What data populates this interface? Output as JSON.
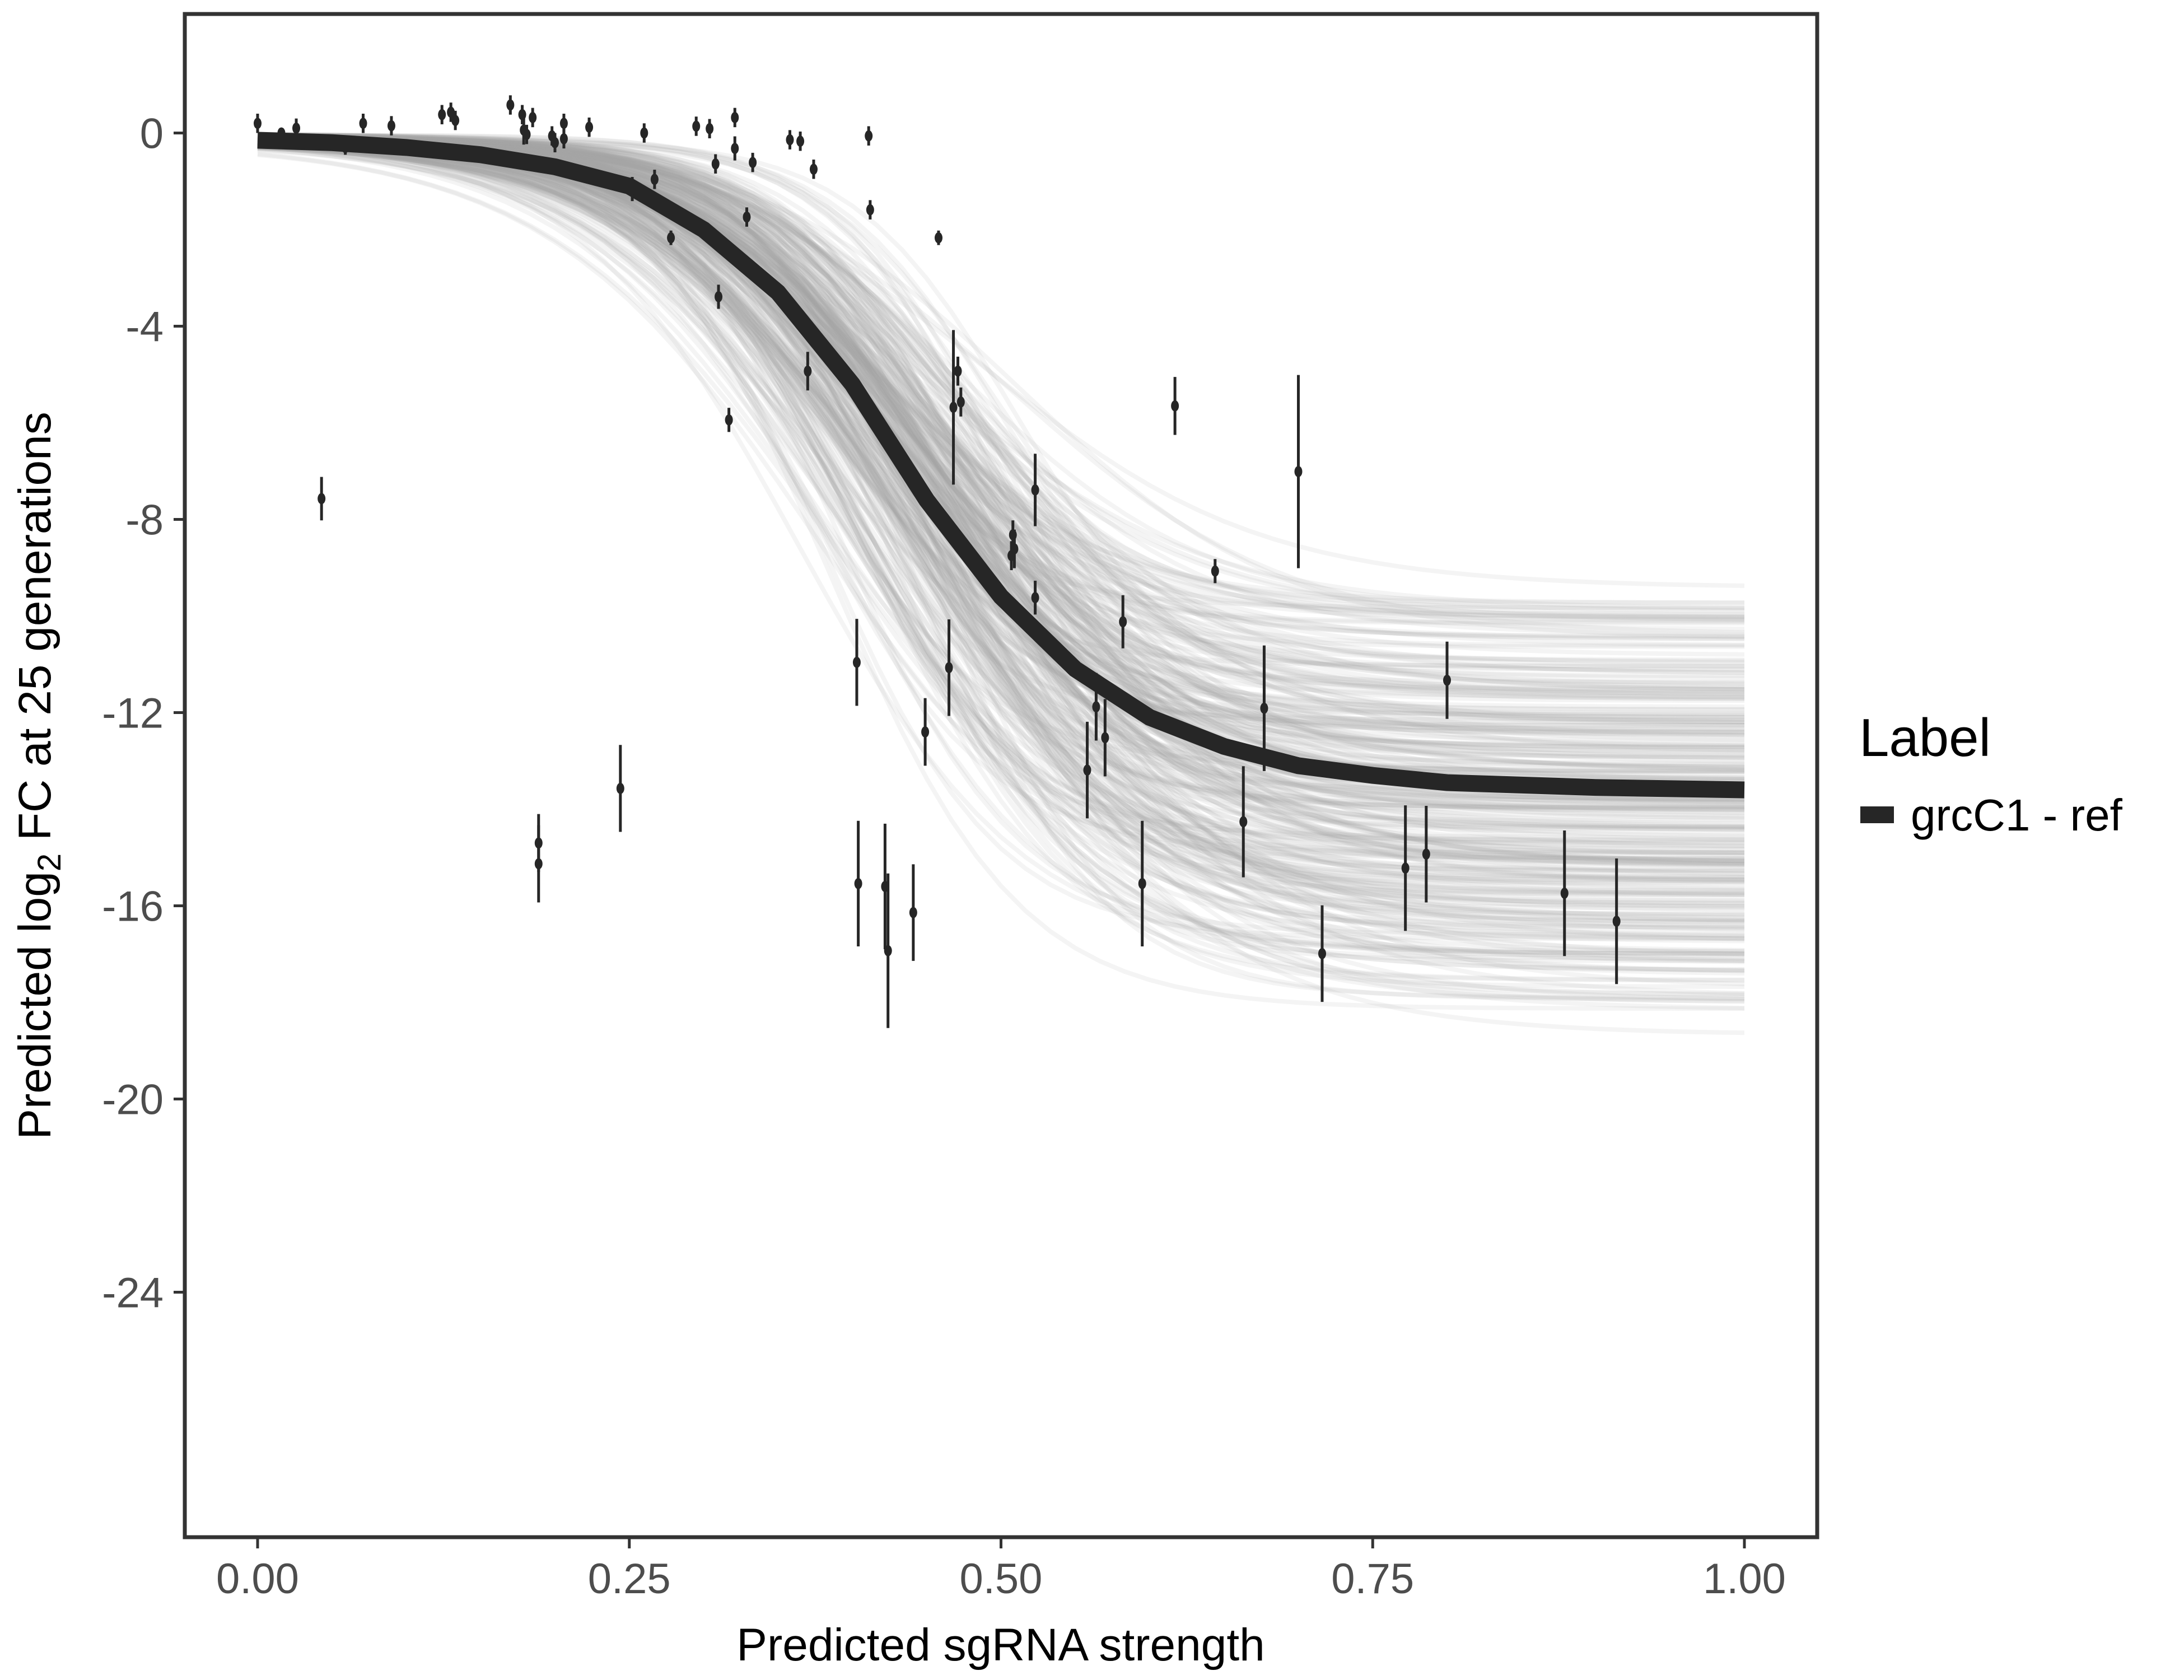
{
  "chart_data": {
    "type": "scatter",
    "title": "",
    "xlabel": "Predicted sgRNA strength",
    "ylabel_prefix": "Predicted  log",
    "ylabel_sub": "2",
    "ylabel_suffix": " FC at 25 generations",
    "xlim": [
      -0.05,
      1.05
    ],
    "ylim": [
      -29.1,
      2.46
    ],
    "xticks": [
      0,
      0.25,
      0.5,
      0.75,
      1.0
    ],
    "xtick_labels": [
      "0.00",
      "0.25",
      "0.50",
      "0.75",
      "1.00"
    ],
    "yticks": [
      0,
      -4,
      -8,
      -12,
      -16,
      -20,
      -24
    ],
    "ytick_labels": [
      "0",
      "-4",
      "-8",
      "-12",
      "-16",
      "-20",
      "-24"
    ],
    "grid": false,
    "legend": {
      "title": "Label",
      "placement": "right",
      "entries": [
        {
          "label": "grcC1 - ref",
          "color": "#262626"
        }
      ]
    },
    "colors": {
      "fit": "#262626",
      "draws": "#a6a6a6",
      "points": "#262626",
      "frame": "#333333"
    },
    "fit_curve": {
      "name": "grcC1 - ref",
      "x": [
        0,
        0.05,
        0.1,
        0.15,
        0.2,
        0.25,
        0.3,
        0.35,
        0.4,
        0.45,
        0.5,
        0.55,
        0.6,
        0.65,
        0.7,
        0.75,
        0.8,
        0.9,
        1.0
      ],
      "y": [
        -0.15,
        -0.2,
        -0.3,
        -0.45,
        -0.7,
        -1.1,
        -2.0,
        -3.3,
        -5.2,
        -7.6,
        -9.6,
        -11.1,
        -12.1,
        -12.7,
        -13.1,
        -13.3,
        -13.45,
        -13.55,
        -13.6
      ]
    },
    "posterior_band": {
      "x": [
        0,
        0.25,
        0.4,
        0.5,
        0.75,
        1.0
      ],
      "upper": [
        0,
        0,
        -1.5,
        -6.8,
        -9.2,
        -9.3
      ],
      "lower": [
        -1.4,
        -3.5,
        -8,
        -12.5,
        -18,
        -19.2
      ]
    },
    "points": [
      {
        "x": 0.0,
        "y": 0.2,
        "err": 0.2
      },
      {
        "x": 0.016,
        "y": 0.0,
        "err": 0.1
      },
      {
        "x": 0.026,
        "y": 0.1,
        "err": 0.2
      },
      {
        "x": 0.043,
        "y": -7.57,
        "err": 0.45
      },
      {
        "x": 0.059,
        "y": -0.3,
        "err": 0.15
      },
      {
        "x": 0.071,
        "y": 0.2,
        "err": 0.2
      },
      {
        "x": 0.09,
        "y": 0.15,
        "err": 0.2
      },
      {
        "x": 0.124,
        "y": 0.38,
        "err": 0.2
      },
      {
        "x": 0.13,
        "y": 0.43,
        "err": 0.2
      },
      {
        "x": 0.133,
        "y": 0.26,
        "err": 0.2
      },
      {
        "x": 0.17,
        "y": 0.58,
        "err": 0.2
      },
      {
        "x": 0.178,
        "y": 0.38,
        "err": 0.2
      },
      {
        "x": 0.179,
        "y": 0.06,
        "err": 0.3
      },
      {
        "x": 0.181,
        "y": -0.03,
        "err": 0.2
      },
      {
        "x": 0.185,
        "y": 0.32,
        "err": 0.2
      },
      {
        "x": 0.198,
        "y": -0.06,
        "err": 0.2
      },
      {
        "x": 0.2,
        "y": -0.2,
        "err": 0.2
      },
      {
        "x": 0.206,
        "y": -0.12,
        "err": 0.2
      },
      {
        "x": 0.206,
        "y": 0.2,
        "err": 0.2
      },
      {
        "x": 0.223,
        "y": 0.12,
        "err": 0.2
      },
      {
        "x": 0.189,
        "y": -14.7,
        "err": 0.6
      },
      {
        "x": 0.189,
        "y": -15.13,
        "err": 0.8
      },
      {
        "x": 0.244,
        "y": -13.57,
        "err": 0.9
      },
      {
        "x": 0.252,
        "y": -1.16,
        "err": 0.25
      },
      {
        "x": 0.26,
        "y": 0.0,
        "err": 0.2
      },
      {
        "x": 0.267,
        "y": -0.96,
        "err": 0.2
      },
      {
        "x": 0.278,
        "y": -2.17,
        "err": 0.15
      },
      {
        "x": 0.295,
        "y": 0.14,
        "err": 0.2
      },
      {
        "x": 0.304,
        "y": 0.09,
        "err": 0.2
      },
      {
        "x": 0.308,
        "y": -0.64,
        "err": 0.2
      },
      {
        "x": 0.31,
        "y": -3.39,
        "err": 0.25
      },
      {
        "x": 0.317,
        "y": -5.94,
        "err": 0.25
      },
      {
        "x": 0.321,
        "y": 0.32,
        "err": 0.2
      },
      {
        "x": 0.321,
        "y": -0.32,
        "err": 0.25
      },
      {
        "x": 0.329,
        "y": -1.74,
        "err": 0.2
      },
      {
        "x": 0.333,
        "y": -0.61,
        "err": 0.2
      },
      {
        "x": 0.358,
        "y": -0.14,
        "err": 0.2
      },
      {
        "x": 0.365,
        "y": -0.17,
        "err": 0.2
      },
      {
        "x": 0.374,
        "y": -0.75,
        "err": 0.2
      },
      {
        "x": 0.37,
        "y": -4.93,
        "err": 0.4
      },
      {
        "x": 0.403,
        "y": -10.96,
        "err": 0.9
      },
      {
        "x": 0.404,
        "y": -15.54,
        "err": 1.3
      },
      {
        "x": 0.411,
        "y": -0.06,
        "err": 0.2
      },
      {
        "x": 0.412,
        "y": -1.59,
        "err": 0.2
      },
      {
        "x": 0.422,
        "y": -15.6,
        "err": 1.3
      },
      {
        "x": 0.424,
        "y": -16.93,
        "err": 1.6
      },
      {
        "x": 0.441,
        "y": -16.14,
        "err": 1.0
      },
      {
        "x": 0.449,
        "y": -12.4,
        "err": 0.7
      },
      {
        "x": 0.458,
        "y": -2.17,
        "err": 0.15
      },
      {
        "x": 0.465,
        "y": -11.07,
        "err": 1.0
      },
      {
        "x": 0.468,
        "y": -5.68,
        "err": 1.6
      },
      {
        "x": 0.471,
        "y": -4.93,
        "err": 0.3
      },
      {
        "x": 0.473,
        "y": -5.57,
        "err": 0.3
      },
      {
        "x": 0.507,
        "y": -8.75,
        "err": 0.3
      },
      {
        "x": 0.508,
        "y": -8.32,
        "err": 0.3
      },
      {
        "x": 0.509,
        "y": -8.61,
        "err": 0.4
      },
      {
        "x": 0.523,
        "y": -7.39,
        "err": 0.75
      },
      {
        "x": 0.523,
        "y": -9.62,
        "err": 0.35
      },
      {
        "x": 0.558,
        "y": -13.19,
        "err": 1.0
      },
      {
        "x": 0.564,
        "y": -11.88,
        "err": 0.7
      },
      {
        "x": 0.57,
        "y": -12.52,
        "err": 0.8
      },
      {
        "x": 0.582,
        "y": -10.12,
        "err": 0.55
      },
      {
        "x": 0.595,
        "y": -15.54,
        "err": 1.3
      },
      {
        "x": 0.617,
        "y": -5.65,
        "err": 0.6
      },
      {
        "x": 0.644,
        "y": -9.07,
        "err": 0.25
      },
      {
        "x": 0.663,
        "y": -14.26,
        "err": 1.15
      },
      {
        "x": 0.677,
        "y": -11.91,
        "err": 1.3
      },
      {
        "x": 0.7,
        "y": -7.01,
        "err": 2.0
      },
      {
        "x": 0.716,
        "y": -16.99,
        "err": 1.0
      },
      {
        "x": 0.772,
        "y": -15.22,
        "err": 1.3
      },
      {
        "x": 0.786,
        "y": -14.93,
        "err": 1.0
      },
      {
        "x": 0.8,
        "y": -11.33,
        "err": 0.8
      },
      {
        "x": 0.879,
        "y": -15.74,
        "err": 1.3
      },
      {
        "x": 0.914,
        "y": -16.32,
        "err": 1.3
      }
    ]
  }
}
